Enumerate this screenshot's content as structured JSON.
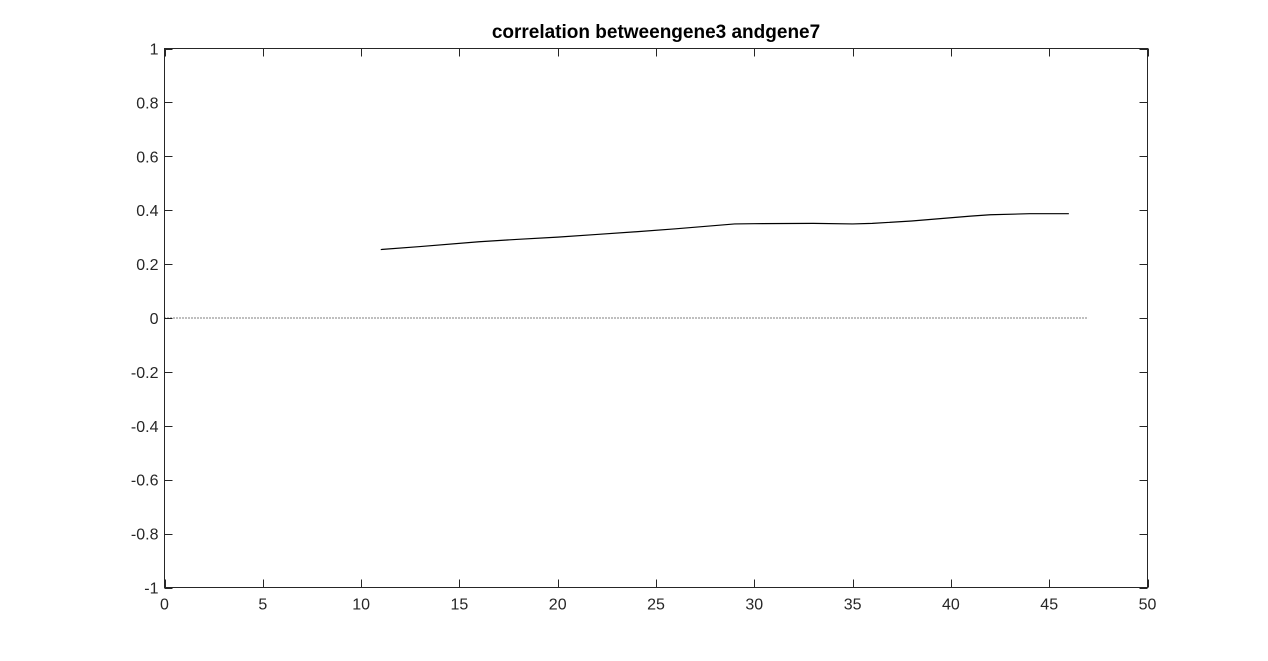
{
  "chart_data": {
    "type": "line",
    "title": "correlation betweengene3 andgene7",
    "xlabel": "",
    "ylabel": "",
    "xlim": [
      0,
      50
    ],
    "ylim": [
      -1,
      1
    ],
    "x_ticks": [
      0,
      5,
      10,
      15,
      20,
      25,
      30,
      35,
      40,
      45,
      50
    ],
    "y_ticks": [
      -1,
      -0.8,
      -0.6,
      -0.4,
      -0.2,
      0,
      0.2,
      0.4,
      0.6,
      0.8,
      1
    ],
    "x_tick_labels": [
      "0",
      "5",
      "10",
      "15",
      "20",
      "25",
      "30",
      "35",
      "40",
      "45",
      "50"
    ],
    "y_tick_labels": [
      "-1",
      "-0.8",
      "-0.6",
      "-0.4",
      "-0.2",
      "0",
      "0.2",
      "0.4",
      "0.6",
      "0.8",
      "1"
    ],
    "grid": false,
    "box": true,
    "series": [
      {
        "x": [
          11,
          13,
          16,
          18,
          20,
          22,
          24,
          26,
          27,
          29,
          30,
          33,
          35,
          36,
          38,
          40,
          41,
          42,
          44,
          46
        ],
        "y": [
          0.254,
          0.265,
          0.283,
          0.292,
          0.3,
          0.31,
          0.32,
          0.331,
          0.337,
          0.349,
          0.35,
          0.351,
          0.349,
          0.351,
          0.36,
          0.372,
          0.378,
          0.383,
          0.387,
          0.387
        ],
        "color": "#000000",
        "style": "solid"
      },
      {
        "x": [
          0,
          47
        ],
        "y": [
          0,
          0
        ],
        "color": "#000000",
        "style": "dotted"
      }
    ]
  }
}
